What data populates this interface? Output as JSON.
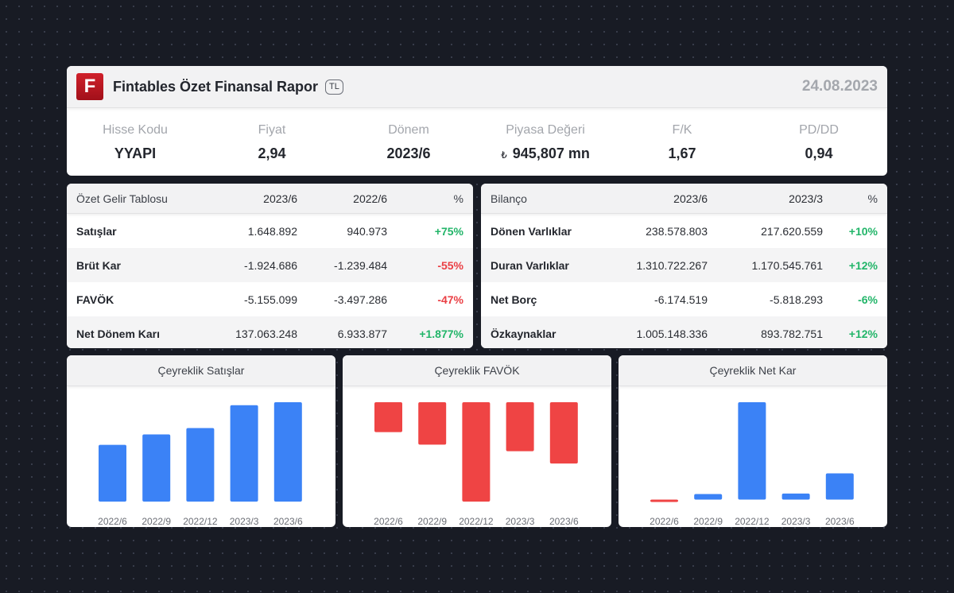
{
  "header": {
    "logo_letter": "F",
    "title": "Fintables Özet Finansal Rapor",
    "currency": "TL",
    "date": "24.08.2023"
  },
  "metrics": [
    {
      "label": "Hisse Kodu",
      "value": "YYAPI"
    },
    {
      "label": "Fiyat",
      "value": "2,94"
    },
    {
      "label": "Dönem",
      "value": "2023/6"
    },
    {
      "label": "Piyasa Değeri",
      "currency_symbol": "₺",
      "value": "945,807 mn"
    },
    {
      "label": "F/K",
      "value": "1,67"
    },
    {
      "label": "PD/DD",
      "value": "0,94"
    }
  ],
  "income": {
    "headers": [
      "Özet Gelir Tablosu",
      "2023/6",
      "2022/6",
      "%"
    ],
    "rows": [
      {
        "name": "Satışlar",
        "a": "1.648.892",
        "b": "940.973",
        "pct": "+75%",
        "dir": "pos"
      },
      {
        "name": "Brüt Kar",
        "a": "-1.924.686",
        "b": "-1.239.484",
        "pct": "-55%",
        "dir": "neg"
      },
      {
        "name": "FAVÖK",
        "a": "-5.155.099",
        "b": "-3.497.286",
        "pct": "-47%",
        "dir": "neg"
      },
      {
        "name": "Net Dönem Karı",
        "a": "137.063.248",
        "b": "6.933.877",
        "pct": "+1.877%",
        "dir": "pos"
      }
    ]
  },
  "balance": {
    "headers": [
      "Bilanço",
      "2023/6",
      "2023/3",
      "%"
    ],
    "rows": [
      {
        "name": "Dönen Varlıklar",
        "a": "238.578.803",
        "b": "217.620.559",
        "pct": "+10%",
        "dir": "pos"
      },
      {
        "name": "Duran Varlıklar",
        "a": "1.310.722.267",
        "b": "1.170.545.761",
        "pct": "+12%",
        "dir": "pos"
      },
      {
        "name": "Net Borç",
        "a": "-6.174.519",
        "b": "-5.818.293",
        "pct": "-6%",
        "dir": "pos"
      },
      {
        "name": "Özkaynaklar",
        "a": "1.005.148.336",
        "b": "893.782.751",
        "pct": "+12%",
        "dir": "pos"
      }
    ]
  },
  "colors": {
    "positive_bar": "#3b82f6",
    "negative_bar": "#ef4444",
    "positive_text": "#22b569",
    "negative_text": "#ea3f44"
  },
  "chart_data": [
    {
      "type": "bar",
      "title": "Çeyreklik Satışlar",
      "categories": [
        "2022/6",
        "2022/9",
        "2022/12",
        "2023/3",
        "2023/6"
      ],
      "values": [
        940973,
        1115000,
        1220000,
        1600000,
        1648892
      ],
      "ylim": [
        0,
        1648892
      ]
    },
    {
      "type": "bar",
      "title": "Çeyreklik FAVÖK",
      "categories": [
        "2022/6",
        "2022/9",
        "2022/12",
        "2023/3",
        "2023/6"
      ],
      "values": [
        -1550000,
        -2200000,
        -5155099,
        -2540000,
        -3180000
      ],
      "ylim": [
        -5155099,
        0
      ]
    },
    {
      "type": "bar",
      "title": "Çeyreklik Net Kar",
      "categories": [
        "2022/6",
        "2022/9",
        "2022/12",
        "2023/3",
        "2023/6"
      ],
      "values": [
        -2000000,
        5800000,
        100000000,
        6300000,
        27000000
      ],
      "ylim": [
        -2000000,
        100000000
      ]
    }
  ]
}
